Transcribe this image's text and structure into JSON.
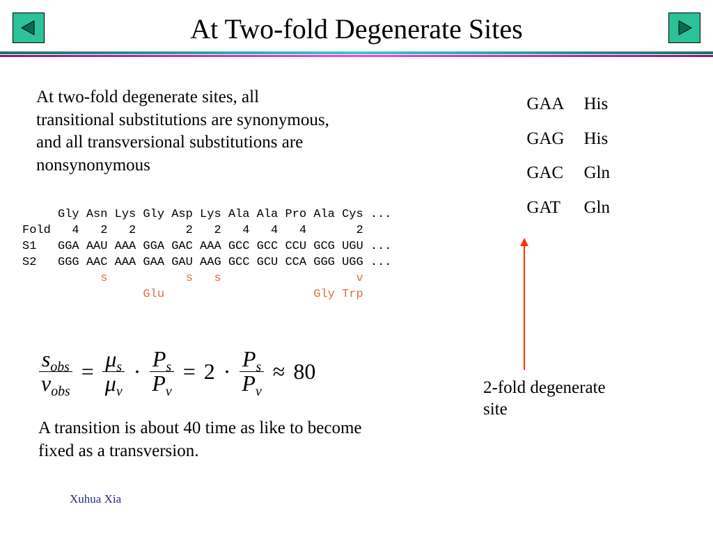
{
  "colors": {
    "nav_fill": "#2bc29a",
    "nav_arrow": "#0a6b51",
    "divider_teal_start": "#1f6e66",
    "divider_teal_mid": "#2fd0c2",
    "divider_teal_end": "#1f6e66",
    "divider_magenta_start": "#7a1d8f",
    "divider_magenta_mid": "#ff3cf0",
    "divider_magenta_end": "#7a1d8f",
    "highlight": "#e07040",
    "arrow": "#ff3300",
    "footer": "#2a2a8a"
  },
  "title": {
    "text": "At Two-fold Degenerate Sites",
    "fontsize": 40
  },
  "para1": "At two-fold degenerate sites, all transitional substitutions are synonymous, and all transversional substitutions are nonsynonymous",
  "codon_table": {
    "rows": [
      [
        "GAA",
        "His"
      ],
      [
        "GAG",
        "His"
      ],
      [
        "GAC",
        "Gln"
      ],
      [
        "GAT",
        "Gln"
      ]
    ]
  },
  "seq": {
    "line1": "     Gly Asn Lys Gly Asp Lys Ala Ala Pro Ala Cys ...",
    "line2": "Fold   4   2   2       2   2   4   4   4       2",
    "line3": "S1   GGA AAU AAA GGA GAC AAA GCC GCC CCU GCG UGU ...",
    "line4": "S2   GGG AAC AAA GAA GAU AAG GCC GCU CCA GGG UGG ...",
    "line5": "           s           s   s                   v",
    "line6": "                 Glu                     Gly Trp"
  },
  "equation": {
    "lhs_num": "s",
    "lhs_num_sub": "obs",
    "lhs_den": "v",
    "lhs_den_sub": "obs",
    "mu": "μ",
    "mu_s": "s",
    "mu_v": "v",
    "P": "P",
    "P_s": "s",
    "P_v": "v",
    "scalar": "2",
    "approx": "80"
  },
  "para2": "A transition is about 40 time as like to become fixed as a transversion.",
  "arrow_label": "2-fold degenerate site",
  "footer": "Xuhua Xia"
}
